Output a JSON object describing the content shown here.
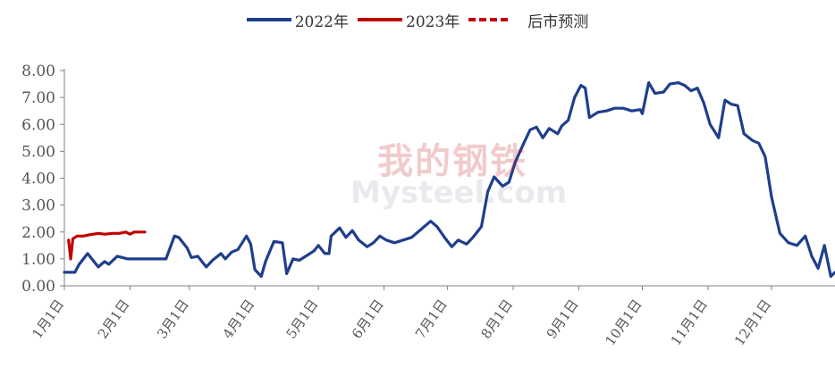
{
  "legend": {
    "s2022": "2022年",
    "s2023": "2023年",
    "forecast": "后市预测"
  },
  "watermark": {
    "cn": "我的钢铁",
    "en": "Mysteel.com"
  },
  "colors": {
    "s2022": "#1f3e8c",
    "s2023": "#c00000",
    "forecast": "#c00000",
    "axis": "#808080",
    "tick_text": "#555555"
  },
  "chart_data": {
    "type": "line",
    "title": "",
    "xlabel": "",
    "ylabel": "",
    "ylim": [
      0,
      8
    ],
    "yticks": [
      "0.00",
      "1.00",
      "2.00",
      "3.00",
      "4.00",
      "5.00",
      "6.00",
      "7.00",
      "8.00"
    ],
    "xlim": [
      "2022-01-01",
      "2022-12-31"
    ],
    "xticks": [
      "1月1日",
      "2月1日",
      "3月1日",
      "4月1日",
      "5月1日",
      "6月1日",
      "7月1日",
      "8月1日",
      "9月1日",
      "10月1日",
      "11月1日",
      "12月1日"
    ],
    "legend_position": "top-center",
    "grid": false,
    "series": [
      {
        "name": "2022年",
        "x": [
          "01-01",
          "01-06",
          "01-08",
          "01-12",
          "01-14",
          "01-17",
          "01-20",
          "01-22",
          "01-26",
          "01-31",
          "02-04",
          "02-08",
          "02-11",
          "02-14",
          "02-18",
          "02-22",
          "02-24",
          "02-28",
          "03-02",
          "03-05",
          "03-09",
          "03-12",
          "03-16",
          "03-18",
          "03-21",
          "03-24",
          "03-28",
          "03-30",
          "04-01",
          "04-04",
          "04-06",
          "04-10",
          "04-14",
          "04-16",
          "04-19",
          "04-22",
          "04-25",
          "04-29",
          "05-01",
          "05-04",
          "05-06",
          "05-07",
          "05-11",
          "05-14",
          "05-17",
          "05-20",
          "05-24",
          "05-27",
          "05-30",
          "06-02",
          "06-06",
          "06-10",
          "06-14",
          "06-17",
          "06-20",
          "06-23",
          "06-26",
          "06-30",
          "07-03",
          "07-06",
          "07-10",
          "07-13",
          "07-17",
          "07-20",
          "07-23",
          "07-27",
          "07-30",
          "08-02",
          "08-06",
          "08-09",
          "08-12",
          "08-15",
          "08-18",
          "08-22",
          "08-24",
          "08-27",
          "08-30",
          "09-02",
          "09-04",
          "09-06",
          "09-10",
          "09-14",
          "09-18",
          "09-22",
          "09-26",
          "09-30",
          "10-01",
          "10-04",
          "10-07",
          "10-11",
          "10-14",
          "10-18",
          "10-21",
          "10-24",
          "10-27",
          "10-30",
          "11-02",
          "11-06",
          "11-09",
          "11-12",
          "11-15",
          "11-18",
          "11-22",
          "11-25",
          "11-28",
          "12-01",
          "12-05",
          "12-09",
          "12-13",
          "12-17",
          "12-20",
          "12-23",
          "12-26",
          "12-29",
          "12-31"
        ],
        "y": [
          0.5,
          0.5,
          0.8,
          1.2,
          1.0,
          0.7,
          0.9,
          0.8,
          1.1,
          1.0,
          1.0,
          1.0,
          1.0,
          1.0,
          1.0,
          1.85,
          1.8,
          1.4,
          1.05,
          1.1,
          0.7,
          0.95,
          1.2,
          1.0,
          1.25,
          1.35,
          1.85,
          1.55,
          0.6,
          0.35,
          0.9,
          1.65,
          1.6,
          0.45,
          1.0,
          0.95,
          1.1,
          1.3,
          1.5,
          1.2,
          1.2,
          1.85,
          2.15,
          1.8,
          2.05,
          1.7,
          1.45,
          1.6,
          1.85,
          1.7,
          1.6,
          1.7,
          1.8,
          2.0,
          2.2,
          2.4,
          2.2,
          1.75,
          1.45,
          1.7,
          1.55,
          1.8,
          2.2,
          3.5,
          4.05,
          3.7,
          3.85,
          4.6,
          5.3,
          5.8,
          5.9,
          5.5,
          5.85,
          5.65,
          5.95,
          6.15,
          7.0,
          7.45,
          7.35,
          6.25,
          6.45,
          6.5,
          6.6,
          6.6,
          6.5,
          6.55,
          6.4,
          7.55,
          7.15,
          7.2,
          7.5,
          7.55,
          7.45,
          7.25,
          7.35,
          6.8,
          6.0,
          5.5,
          6.9,
          6.75,
          6.7,
          5.65,
          5.4,
          5.3,
          4.8,
          3.3,
          1.95,
          1.6,
          1.5,
          1.85,
          1.1,
          0.65,
          1.5,
          0.35,
          0.5
        ]
      },
      {
        "name": "2023年",
        "x": [
          "01-03",
          "01-04",
          "01-05",
          "01-07",
          "01-10",
          "01-13",
          "01-17",
          "01-20",
          "01-24",
          "01-27",
          "01-30",
          "02-01",
          "02-03",
          "02-06",
          "02-08"
        ],
        "y": [
          1.7,
          1.0,
          1.75,
          1.85,
          1.85,
          1.9,
          1.95,
          1.92,
          1.95,
          1.95,
          2.0,
          1.92,
          2.0,
          2.0,
          2.0
        ]
      },
      {
        "name": "后市预测",
        "x": [],
        "y": []
      }
    ]
  }
}
